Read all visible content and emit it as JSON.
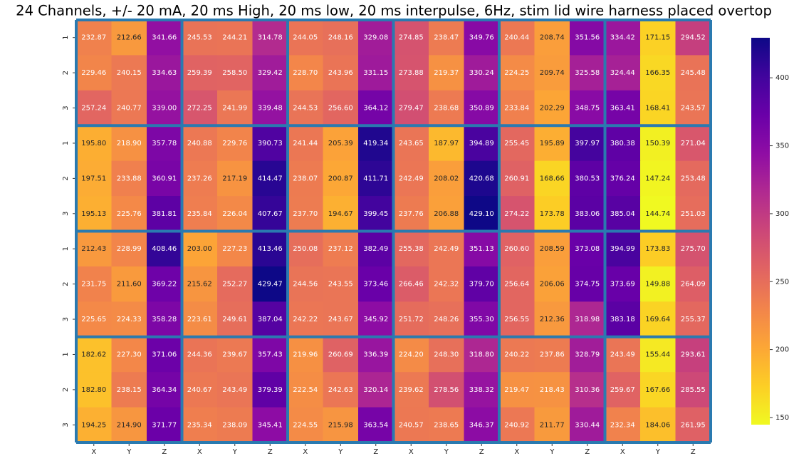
{
  "chart_data": {
    "type": "heatmap",
    "title": "24 Channels, +/- 20 mA, 20 ms High, 20 ms low, 20 ms interpulse, 6Hz, stim lid wire harness placed overtop",
    "rows": [
      "1",
      "2",
      "3",
      "1",
      "2",
      "3",
      "1",
      "2",
      "3",
      "1",
      "2",
      "3"
    ],
    "columns": [
      "X",
      "Y",
      "Z",
      "X",
      "Y",
      "Z",
      "X",
      "Y",
      "Z",
      "X",
      "Y",
      "Z",
      "X",
      "Y",
      "Z",
      "X",
      "Y",
      "Z"
    ],
    "values": [
      [
        232.87,
        212.66,
        341.66,
        245.53,
        244.21,
        314.78,
        244.05,
        248.16,
        329.08,
        274.85,
        238.47,
        349.76,
        240.44,
        208.74,
        351.56,
        334.42,
        171.15,
        294.52
      ],
      [
        229.46,
        240.15,
        334.63,
        259.39,
        258.5,
        329.42,
        228.7,
        243.96,
        331.15,
        273.88,
        219.37,
        330.24,
        224.25,
        209.74,
        325.58,
        324.44,
        166.35,
        245.48
      ],
      [
        257.24,
        240.77,
        339,
        272.25,
        241.99,
        339.48,
        244.53,
        256.6,
        364.12,
        279.47,
        238.68,
        350.89,
        233.84,
        202.29,
        348.75,
        363.41,
        168.41,
        243.57
      ],
      [
        195.8,
        218.9,
        357.78,
        240.88,
        229.76,
        390.73,
        241.44,
        205.39,
        419.34,
        243.65,
        187.97,
        394.89,
        255.45,
        195.89,
        397.97,
        380.38,
        150.39,
        271.04
      ],
      [
        197.51,
        233.88,
        360.91,
        237.26,
        217.19,
        414.47,
        238.07,
        200.87,
        411.71,
        242.49,
        208.02,
        420.68,
        260.91,
        168.66,
        380.53,
        376.24,
        147.24,
        253.48
      ],
      [
        195.13,
        225.76,
        381.81,
        235.84,
        226.04,
        407.67,
        237.7,
        194.67,
        399.45,
        237.76,
        206.88,
        429.1,
        274.22,
        173.78,
        383.06,
        385.04,
        144.74,
        251.03
      ],
      [
        212.43,
        228.99,
        408.46,
        203,
        227.23,
        413.46,
        250.08,
        237.12,
        382.49,
        255.38,
        242.49,
        351.13,
        260.6,
        208.59,
        373.08,
        394.99,
        173.83,
        275.7
      ],
      [
        231.75,
        211.6,
        369.22,
        215.62,
        252.27,
        429.47,
        244.56,
        243.55,
        373.46,
        266.46,
        242.32,
        379.7,
        256.64,
        206.06,
        374.75,
        373.69,
        149.88,
        264.09
      ],
      [
        225.65,
        224.33,
        358.28,
        223.61,
        249.61,
        387.04,
        242.22,
        243.67,
        345.92,
        251.72,
        248.26,
        355.3,
        256.55,
        212.36,
        318.98,
        383.18,
        169.64,
        255.37
      ],
      [
        182.62,
        227.3,
        371.06,
        244.36,
        239.67,
        357.43,
        219.96,
        260.69,
        336.39,
        224.2,
        248.3,
        318.8,
        240.22,
        237.86,
        328.79,
        243.49,
        155.44,
        293.61
      ],
      [
        182.8,
        238.15,
        364.34,
        240.67,
        243.49,
        379.39,
        222.54,
        242.63,
        320.14,
        239.62,
        278.56,
        338.32,
        219.47,
        218.43,
        310.36,
        259.67,
        167.66,
        285.55
      ],
      [
        194.25,
        214.9,
        371.77,
        235.34,
        238.09,
        345.41,
        224.55,
        215.98,
        363.54,
        240.57,
        238.65,
        346.37,
        240.92,
        211.77,
        330.44,
        232.34,
        184.06,
        261.95
      ]
    ],
    "value_labels": [
      [
        "232.87",
        "212.66",
        "341.66",
        "245.53",
        "244.21",
        "314.78",
        "244.05",
        "248.16",
        "329.08",
        "274.85",
        "238.47",
        "349.76",
        "240.44",
        "208.74",
        "351.56",
        "334.42",
        "171.15",
        "294.52"
      ],
      [
        "229.46",
        "240.15",
        "334.63",
        "259.39",
        "258.50",
        "329.42",
        "228.70",
        "243.96",
        "331.15",
        "273.88",
        "219.37",
        "330.24",
        "224.25",
        "209.74",
        "325.58",
        "324.44",
        "166.35",
        "245.48"
      ],
      [
        "257.24",
        "240.77",
        "339.00",
        "272.25",
        "241.99",
        "339.48",
        "244.53",
        "256.60",
        "364.12",
        "279.47",
        "238.68",
        "350.89",
        "233.84",
        "202.29",
        "348.75",
        "363.41",
        "168.41",
        "243.57"
      ],
      [
        "195.80",
        "218.90",
        "357.78",
        "240.88",
        "229.76",
        "390.73",
        "241.44",
        "205.39",
        "419.34",
        "243.65",
        "187.97",
        "394.89",
        "255.45",
        "195.89",
        "397.97",
        "380.38",
        "150.39",
        "271.04"
      ],
      [
        "197.51",
        "233.88",
        "360.91",
        "237.26",
        "217.19",
        "414.47",
        "238.07",
        "200.87",
        "411.71",
        "242.49",
        "208.02",
        "420.68",
        "260.91",
        "168.66",
        "380.53",
        "376.24",
        "147.24",
        "253.48"
      ],
      [
        "195.13",
        "225.76",
        "381.81",
        "235.84",
        "226.04",
        "407.67",
        "237.70",
        "194.67",
        "399.45",
        "237.76",
        "206.88",
        "429.10",
        "274.22",
        "173.78",
        "383.06",
        "385.04",
        "144.74",
        "251.03"
      ],
      [
        "212.43",
        "228.99",
        "408.46",
        "203.00",
        "227.23",
        "413.46",
        "250.08",
        "237.12",
        "382.49",
        "255.38",
        "242.49",
        "351.13",
        "260.60",
        "208.59",
        "373.08",
        "394.99",
        "173.83",
        "275.70"
      ],
      [
        "231.75",
        "211.60",
        "369.22",
        "215.62",
        "252.27",
        "429.47",
        "244.56",
        "243.55",
        "373.46",
        "266.46",
        "242.32",
        "379.70",
        "256.64",
        "206.06",
        "374.75",
        "373.69",
        "149.88",
        "264.09"
      ],
      [
        "225.65",
        "224.33",
        "358.28",
        "223.61",
        "249.61",
        "387.04",
        "242.22",
        "243.67",
        "345.92",
        "251.72",
        "248.26",
        "355.30",
        "256.55",
        "212.36",
        "318.98",
        "383.18",
        "169.64",
        "255.37"
      ],
      [
        "182.62",
        "227.30",
        "371.06",
        "244.36",
        "239.67",
        "357.43",
        "219.96",
        "260.69",
        "336.39",
        "224.20",
        "248.30",
        "318.80",
        "240.22",
        "237.86",
        "328.79",
        "243.49",
        "155.44",
        "293.61"
      ],
      [
        "182.80",
        "238.15",
        "364.34",
        "240.67",
        "243.49",
        "379.39",
        "222.54",
        "242.63",
        "320.14",
        "239.62",
        "278.56",
        "338.32",
        "219.47",
        "218.43",
        "310.36",
        "259.67",
        "167.66",
        "285.55"
      ],
      [
        "194.25",
        "214.90",
        "371.77",
        "235.34",
        "238.09",
        "345.41",
        "224.55",
        "215.98",
        "363.54",
        "240.57",
        "238.65",
        "346.37",
        "240.92",
        "211.77",
        "330.44",
        "232.34",
        "184.06",
        "261.95"
      ]
    ],
    "colormap": "plasma_r",
    "clim": [
      144.74,
      429.47
    ],
    "cticks": [
      150,
      200,
      250,
      300,
      350,
      400
    ],
    "separator_color": "#2a7ab0"
  }
}
